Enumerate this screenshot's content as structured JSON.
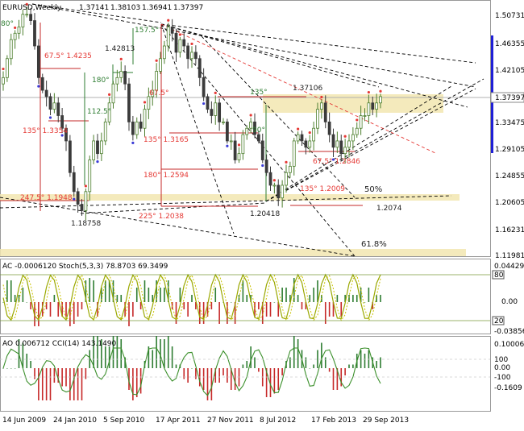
{
  "chart_data": {
    "type": "candlestick",
    "symbol": "EURUSD,Weekly",
    "ohlc": {
      "open": "1.37141",
      "high": "1.38103",
      "low": "1.36941",
      "close": "1.37397"
    },
    "last_price": "1.37397",
    "price_axis": [
      "1.50731",
      "1.46355",
      "1.42105",
      "1.37397",
      "1.33475",
      "1.29105",
      "1.24855",
      "1.20605",
      "1.16231",
      "1.11981"
    ],
    "ylim": [
      1.118,
      1.52
    ],
    "time_axis": [
      "14 Jun 2009",
      "24 Jan 2010",
      "5 Sep 2010",
      "17 Apr 2011",
      "27 Nov 2011",
      "8 Jul 2012",
      "17 Feb 2013",
      "29 Sep 2013"
    ],
    "close_series": [
      1.4,
      1.43,
      1.46,
      1.47,
      1.48,
      1.5,
      1.5,
      1.49,
      1.45,
      1.4,
      1.38,
      1.37,
      1.35,
      1.36,
      1.34,
      1.32,
      1.3,
      1.25,
      1.22,
      1.2,
      1.19,
      1.22,
      1.27,
      1.3,
      1.28,
      1.3,
      1.33,
      1.36,
      1.39,
      1.4,
      1.41,
      1.39,
      1.33,
      1.31,
      1.33,
      1.32,
      1.35,
      1.37,
      1.38,
      1.41,
      1.43,
      1.45,
      1.48,
      1.47,
      1.44,
      1.46,
      1.45,
      1.43,
      1.44,
      1.43,
      1.4,
      1.37,
      1.35,
      1.34,
      1.36,
      1.33,
      1.33,
      1.3,
      1.3,
      1.27,
      1.28,
      1.31,
      1.32,
      1.33,
      1.31,
      1.3,
      1.27,
      1.25,
      1.23,
      1.23,
      1.21,
      1.23,
      1.25,
      1.26,
      1.3,
      1.31,
      1.3,
      1.29,
      1.3,
      1.32,
      1.35,
      1.36,
      1.33,
      1.31,
      1.29,
      1.3,
      1.28,
      1.29,
      1.3,
      1.31,
      1.32,
      1.34,
      1.34,
      1.36,
      1.35,
      1.36,
      1.37
    ],
    "annotations": [
      {
        "text": "80°",
        "color": "#2e7d32"
      },
      {
        "text": "157.5°",
        "color": "#2e7d32"
      },
      {
        "text": "67.5° 1.4235",
        "color": "#e53935"
      },
      {
        "text": "1.42813",
        "color": "#222222"
      },
      {
        "text": "180°",
        "color": "#2e7d32"
      },
      {
        "text": "112.5°",
        "color": "#2e7d32"
      },
      {
        "text": "67.5°",
        "color": "#e53935"
      },
      {
        "text": "135° 1.3354",
        "color": "#e53935"
      },
      {
        "text": "135°",
        "color": "#2e7d32"
      },
      {
        "text": "1.37106",
        "color": "#222222"
      },
      {
        "text": "90°",
        "color": "#2e7d32"
      },
      {
        "text": "135° 1.3165",
        "color": "#e53935"
      },
      {
        "text": "67.5° 1.2846",
        "color": "#e53935"
      },
      {
        "text": "180° 1.2594",
        "color": "#e53935"
      },
      {
        "text": "135° 1.2009",
        "color": "#e53935"
      },
      {
        "text": "50%",
        "color": "#222222"
      },
      {
        "text": "247.5° 1.1948",
        "color": "#e53935"
      },
      {
        "text": "1.2074",
        "color": "#222222"
      },
      {
        "text": "1.20418",
        "color": "#222222"
      },
      {
        "text": "225° 1.2038",
        "color": "#e53935"
      },
      {
        "text": "1.18758",
        "color": "#222222"
      },
      {
        "text": "61.8%",
        "color": "#222222"
      }
    ],
    "indicator1": {
      "label": "AC -0.0006120  Stoch(5,3,3) 78.8703 69.3499",
      "axis": [
        "0.044294",
        "80",
        "0.00",
        "20",
        "-0.038568"
      ]
    },
    "indicator2": {
      "label": "AO 0.006712  CCI(14) 143.1490",
      "axis": [
        "0.100061",
        "100",
        "0.00",
        "-100",
        "-0.1609"
      ]
    }
  },
  "colors": {
    "bull": "#4d7f2e",
    "bear": "#3b3b3b",
    "zone": "#f2e6b0",
    "stoch": "#9aa800",
    "cci": "#3a8f2a",
    "axis_bar": "#1f1fd6"
  }
}
